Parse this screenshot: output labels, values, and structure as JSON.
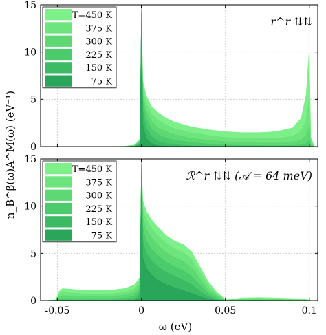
{
  "figure": {
    "ylabel": "n_B^β(ω)A^M(ω) (eV⁻¹)",
    "xlabel": "ω (eV)"
  },
  "colors": {
    "shades": [
      "#7ef08a",
      "#6ee47c",
      "#5dd872",
      "#4ccb6c",
      "#3dbb64",
      "#2aa65a"
    ],
    "axis": "#000000",
    "grid": "#c8c8c8"
  },
  "chart_data": [
    {
      "type": "area",
      "panel": "top",
      "annotation": "r^r ⇅⇅",
      "xlim": [
        -0.06,
        0.105
      ],
      "ylim": [
        0,
        15
      ],
      "xticks": [
        -0.05,
        0,
        0.05,
        0.1
      ],
      "yticks": [
        0,
        5,
        10,
        15
      ],
      "ytick_labels": [
        "0",
        "5",
        "10",
        "15"
      ],
      "grid": true,
      "legend": "top-left",
      "x": [
        -0.06,
        -0.01,
        -0.004,
        -0.001,
        0.0,
        0.001,
        0.003,
        0.006,
        0.01,
        0.015,
        0.02,
        0.03,
        0.04,
        0.05,
        0.06,
        0.07,
        0.08,
        0.09,
        0.095,
        0.098,
        0.1,
        0.101,
        0.103,
        0.105
      ],
      "series": [
        {
          "name": "T=450 K",
          "values": [
            0,
            0.05,
            0.2,
            0.8,
            15,
            7.0,
            5.4,
            4.3,
            3.6,
            3.0,
            2.6,
            2.1,
            1.8,
            1.6,
            1.5,
            1.5,
            1.6,
            2.0,
            3.0,
            5.5,
            10.8,
            1.0,
            0.05,
            0
          ]
        },
        {
          "name": "375 K",
          "values": [
            0,
            0.04,
            0.15,
            0.7,
            15,
            6.3,
            4.6,
            3.5,
            2.8,
            2.3,
            1.9,
            1.5,
            1.2,
            1.0,
            0.9,
            0.9,
            0.9,
            1.1,
            1.6,
            2.8,
            5.5,
            0.6,
            0.03,
            0
          ]
        },
        {
          "name": "300 K",
          "values": [
            0,
            0.03,
            0.12,
            0.6,
            15,
            5.6,
            3.8,
            2.7,
            2.0,
            1.6,
            1.3,
            0.9,
            0.7,
            0.55,
            0.45,
            0.4,
            0.4,
            0.5,
            0.7,
            1.2,
            2.4,
            0.3,
            0.02,
            0
          ]
        },
        {
          "name": "225 K",
          "values": [
            0,
            0.02,
            0.08,
            0.5,
            15,
            4.8,
            3.0,
            1.9,
            1.3,
            0.9,
            0.7,
            0.45,
            0.3,
            0.2,
            0.15,
            0.13,
            0.12,
            0.14,
            0.2,
            0.35,
            0.7,
            0.1,
            0.01,
            0
          ]
        },
        {
          "name": "150 K",
          "values": [
            0,
            0.01,
            0.05,
            0.35,
            15,
            3.8,
            2.0,
            1.1,
            0.6,
            0.35,
            0.22,
            0.1,
            0.05,
            0.03,
            0.02,
            0.01,
            0.01,
            0.01,
            0.02,
            0.03,
            0.05,
            0.01,
            0,
            0
          ]
        },
        {
          "name": "75 K",
          "values": [
            0,
            0.0,
            0.02,
            0.2,
            15,
            2.4,
            0.9,
            0.35,
            0.12,
            0.05,
            0.02,
            0.01,
            0,
            0,
            0,
            0,
            0,
            0,
            0,
            0,
            0,
            0,
            0,
            0
          ]
        }
      ]
    },
    {
      "type": "area",
      "panel": "bottom",
      "annotation": "ℛ^r ⇅⇅ (𝒜 = 64 meV)",
      "xlim": [
        -0.06,
        0.105
      ],
      "ylim": [
        0,
        15
      ],
      "xticks": [
        -0.05,
        0,
        0.05,
        0.1
      ],
      "xtick_labels": [
        "-0.05",
        "0",
        "0.05",
        "0.1"
      ],
      "yticks": [
        0,
        5,
        10,
        15
      ],
      "ytick_labels": [
        "0",
        "5",
        "10",
        "15"
      ],
      "grid": true,
      "legend": "top-left",
      "x": [
        -0.06,
        -0.051,
        -0.049,
        -0.047,
        -0.04,
        -0.03,
        -0.02,
        -0.01,
        -0.004,
        -0.001,
        0.0,
        0.001,
        0.003,
        0.006,
        0.01,
        0.015,
        0.02,
        0.025,
        0.03,
        0.035,
        0.04,
        0.045,
        0.049,
        0.05,
        0.06,
        0.07,
        0.08,
        0.09,
        0.098,
        0.1,
        0.105
      ],
      "series": [
        {
          "name": "T=450 K",
          "values": [
            0,
            0.1,
            1.0,
            1.3,
            1.2,
            1.1,
            1.1,
            1.3,
            1.7,
            2.5,
            15,
            10.6,
            9.5,
            8.6,
            7.8,
            6.9,
            6.3,
            6.0,
            5.2,
            3.6,
            2.0,
            0.9,
            0.3,
            0.1,
            0.3,
            0.35,
            0.3,
            0.25,
            0.2,
            0.05,
            0
          ]
        },
        {
          "name": "375 K",
          "values": [
            0,
            0.08,
            0.7,
            0.9,
            0.8,
            0.7,
            0.7,
            0.9,
            1.3,
            2.1,
            15,
            9.8,
            8.6,
            7.7,
            6.9,
            6.1,
            5.5,
            5.1,
            4.4,
            3.0,
            1.6,
            0.7,
            0.2,
            0.07,
            0.2,
            0.25,
            0.2,
            0.15,
            0.1,
            0.03,
            0
          ]
        },
        {
          "name": "300 K",
          "values": [
            0,
            0.05,
            0.4,
            0.55,
            0.5,
            0.45,
            0.45,
            0.6,
            0.9,
            1.7,
            15,
            8.9,
            7.6,
            6.7,
            5.9,
            5.1,
            4.6,
            4.2,
            3.5,
            2.3,
            1.2,
            0.5,
            0.15,
            0.05,
            0.12,
            0.15,
            0.12,
            0.08,
            0.05,
            0.02,
            0
          ]
        },
        {
          "name": "225 K",
          "values": [
            0,
            0.03,
            0.2,
            0.25,
            0.22,
            0.2,
            0.2,
            0.3,
            0.5,
            1.2,
            15,
            7.8,
            6.4,
            5.5,
            4.8,
            4.1,
            3.6,
            3.2,
            2.6,
            1.7,
            0.8,
            0.3,
            0.1,
            0.03,
            0.06,
            0.07,
            0.05,
            0.03,
            0.02,
            0.01,
            0
          ]
        },
        {
          "name": "150 K",
          "values": [
            0,
            0.01,
            0.06,
            0.08,
            0.07,
            0.06,
            0.07,
            0.1,
            0.2,
            0.7,
            15,
            6.4,
            5.1,
            4.3,
            3.6,
            3.0,
            2.6,
            2.2,
            1.7,
            1.0,
            0.45,
            0.15,
            0.05,
            0.01,
            0.02,
            0.02,
            0.01,
            0.01,
            0,
            0,
            0
          ]
        },
        {
          "name": "75 K",
          "values": [
            0,
            0,
            0.01,
            0.01,
            0.01,
            0.01,
            0.01,
            0.02,
            0.05,
            0.3,
            15,
            4.6,
            3.5,
            2.8,
            2.2,
            1.7,
            1.4,
            1.1,
            0.8,
            0.45,
            0.2,
            0.06,
            0.02,
            0,
            0,
            0,
            0,
            0,
            0,
            0,
            0
          ]
        }
      ]
    }
  ]
}
